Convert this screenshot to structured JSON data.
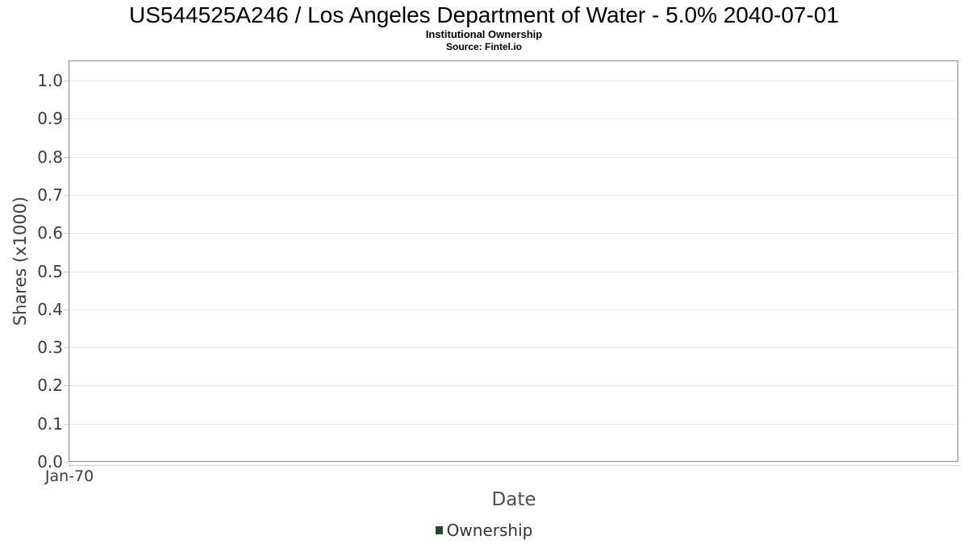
{
  "header": {
    "title": "US544525A246 / Los Angeles Department of Water - 5.0% 2040-07-01",
    "subtitle": "Institutional Ownership",
    "source": "Source: Fintel.io"
  },
  "chart_data": {
    "type": "line",
    "title": "US544525A246 / Los Angeles Department of Water - 5.0% 2040-07-01",
    "subtitle": "Institutional Ownership",
    "source": "Source: Fintel.io",
    "xlabel": "Date",
    "ylabel": "Shares (x1000)",
    "ylim": [
      0,
      1.053
    ],
    "yticks": [
      0.0,
      0.1,
      0.2,
      0.3,
      0.4,
      0.5,
      0.6,
      0.7,
      0.8,
      0.9,
      1.0
    ],
    "ytick_labels": [
      "0.0",
      "0.1",
      "0.2",
      "0.3",
      "0.4",
      "0.5",
      "0.6",
      "0.7",
      "0.8",
      "0.9",
      "1.0"
    ],
    "xtick_labels": [
      "Jan-70"
    ],
    "grid": true,
    "legend_position": "bottom",
    "series": [
      {
        "name": "Ownership",
        "color": "#1d4b2a",
        "x": [],
        "y": []
      }
    ]
  },
  "colors": {
    "series_green": "#1d4b2a",
    "gridline": "#e6e6e6",
    "plot_border": "#878787",
    "tick": "#cfcfcf",
    "tick_label": "#3b3b3b",
    "axis_title": "#4d4d4d"
  }
}
